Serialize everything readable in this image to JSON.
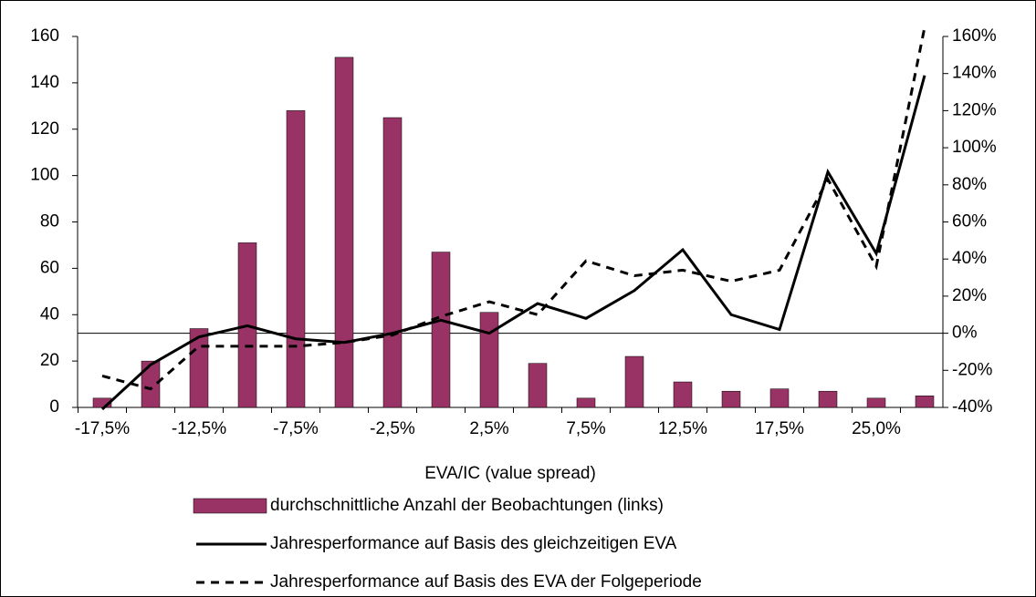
{
  "chart_data": {
    "type": "bar-line",
    "x_label": "EVA/IC (value spread)",
    "categories": [
      "-17,5%",
      null,
      "-12,5%",
      null,
      "-7,5%",
      null,
      "-2,5%",
      null,
      "2,5%",
      null,
      "7,5%",
      null,
      "12,5%",
      null,
      "17,5%",
      null,
      "25,0%",
      null
    ],
    "series": [
      {
        "name": "durchschnittliche Anzahl der Beobachtungen (links)",
        "type": "bar",
        "color": "#993366",
        "values": [
          4,
          20,
          34,
          71,
          128,
          151,
          125,
          67,
          41,
          19,
          4,
          22,
          11,
          7,
          8,
          7,
          4,
          5
        ]
      },
      {
        "name": "Jahresperformance auf Basis des gleichzeitigen EVA",
        "type": "line",
        "dash": "solid",
        "axis": "y2",
        "color": "#000000",
        "values": [
          -41,
          -17,
          -2,
          4,
          -3,
          -5,
          0,
          7,
          0,
          16,
          8,
          23,
          45,
          10,
          2,
          87,
          43,
          139
        ]
      },
      {
        "name": "Jahresperformance auf Basis des EVA der Folgeperiode",
        "type": "line",
        "dash": "dashed",
        "axis": "y2",
        "color": "#000000",
        "values": [
          -23,
          -30,
          -7,
          -7,
          -7,
          -5,
          -1,
          9,
          17,
          10,
          39,
          31,
          34,
          28,
          34,
          83,
          36,
          165
        ]
      }
    ],
    "ylim": [
      0,
      160
    ],
    "yticks": [
      0,
      20,
      40,
      60,
      80,
      100,
      120,
      140,
      160
    ],
    "y2lim": [
      -40,
      160
    ],
    "y2ticks": [
      {
        "value": -40,
        "label": "-40%"
      },
      {
        "value": -20,
        "label": "-20%"
      },
      {
        "value": 0,
        "label": "0%"
      },
      {
        "value": 20,
        "label": "20%"
      },
      {
        "value": 40,
        "label": "40%"
      },
      {
        "value": 60,
        "label": "60%"
      },
      {
        "value": 80,
        "label": "80%"
      },
      {
        "value": 100,
        "label": "100%"
      },
      {
        "value": 120,
        "label": "120%"
      },
      {
        "value": 140,
        "label": "140%"
      },
      {
        "value": 160,
        "label": "160%"
      }
    ]
  }
}
